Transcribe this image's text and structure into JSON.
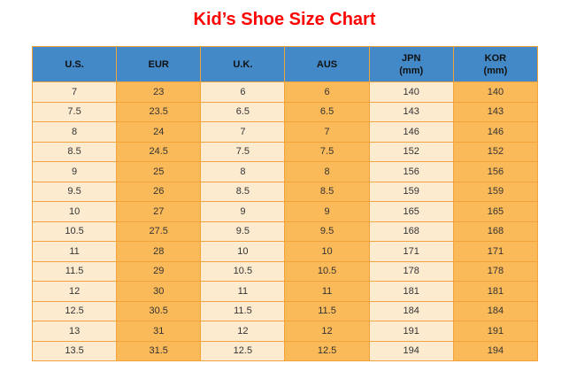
{
  "title": "Kid’s Shoe Size Chart",
  "colors": {
    "title_red": "#FF0000",
    "header_blue": "#4389C7",
    "col_cream": "#FDEBD0",
    "col_orange": "#FBBA59",
    "border_orange": "#F2A33C",
    "header_text": "#111111",
    "cell_text": "#333333"
  },
  "chart_data": {
    "type": "table",
    "title": "Kid’s Shoe Size Chart",
    "columns": [
      {
        "label": "U.S.",
        "sub": ""
      },
      {
        "label": "EUR",
        "sub": ""
      },
      {
        "label": "U.K.",
        "sub": ""
      },
      {
        "label": "AUS",
        "sub": ""
      },
      {
        "label": "JPN",
        "sub": "(mm)"
      },
      {
        "label": "KOR",
        "sub": "(mm)"
      }
    ],
    "rows": [
      [
        "7",
        "23",
        "6",
        "6",
        "140",
        "140"
      ],
      [
        "7.5",
        "23.5",
        "6.5",
        "6.5",
        "143",
        "143"
      ],
      [
        "8",
        "24",
        "7",
        "7",
        "146",
        "146"
      ],
      [
        "8.5",
        "24.5",
        "7.5",
        "7.5",
        "152",
        "152"
      ],
      [
        "9",
        "25",
        "8",
        "8",
        "156",
        "156"
      ],
      [
        "9.5",
        "26",
        "8.5",
        "8.5",
        "159",
        "159"
      ],
      [
        "10",
        "27",
        "9",
        "9",
        "165",
        "165"
      ],
      [
        "10.5",
        "27.5",
        "9.5",
        "9.5",
        "168",
        "168"
      ],
      [
        "11",
        "28",
        "10",
        "10",
        "171",
        "171"
      ],
      [
        "11.5",
        "29",
        "10.5",
        "10.5",
        "178",
        "178"
      ],
      [
        "12",
        "30",
        "11",
        "11",
        "181",
        "181"
      ],
      [
        "12.5",
        "30.5",
        "11.5",
        "11.5",
        "184",
        "184"
      ],
      [
        "13",
        "31",
        "12",
        "12",
        "191",
        "191"
      ],
      [
        "13.5",
        "31.5",
        "12.5",
        "12.5",
        "194",
        "194"
      ]
    ]
  }
}
